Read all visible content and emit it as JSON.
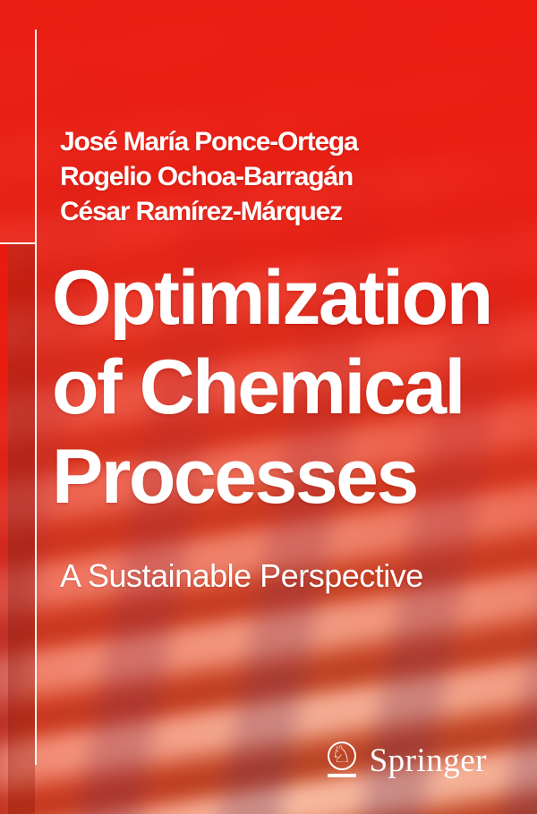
{
  "cover": {
    "authors": [
      "José María Ponce-Ortega",
      "Rogelio Ochoa-Barragán",
      "César Ramírez-Márquez"
    ],
    "title_lines": [
      "Optimization",
      "of Chemical",
      "Processes"
    ],
    "subtitle": "A Sustainable Perspective",
    "logo": {
      "publisher": "Springer",
      "horse_glyph": "♘"
    }
  },
  "colors": {
    "cover_red": "#e8221a",
    "texture_salmon": "#eda285",
    "texture_dark": "#bf4b2c",
    "text": "#ffffff"
  }
}
